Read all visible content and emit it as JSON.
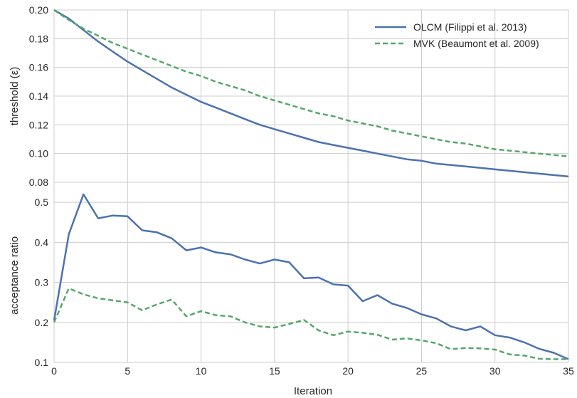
{
  "colors": {
    "olcm": "#4c72b0",
    "mvk": "#55a868",
    "grid": "#cccccc",
    "text": "#262626"
  },
  "chart_data": [
    {
      "type": "line",
      "title": "",
      "xlabel": "",
      "ylabel": "threshold (ε)",
      "xlim": [
        0,
        35
      ],
      "ylim": [
        0.08,
        0.2
      ],
      "xticks": [
        0,
        5,
        10,
        15,
        20,
        25,
        30,
        35
      ],
      "xtick_labels": [
        "0",
        "5",
        "10",
        "15",
        "20",
        "25",
        "30",
        "35"
      ],
      "yticks": [
        0.08,
        0.1,
        0.12,
        0.14,
        0.16,
        0.18,
        0.2
      ],
      "ytick_labels": [
        "0.08",
        "0.10",
        "0.12",
        "0.14",
        "0.16",
        "0.18",
        "0.20"
      ],
      "grid": true,
      "legend": "top-right",
      "series": [
        {
          "name": "OLCM (Filippi et al. 2013)",
          "style": "solid",
          "x": [
            0,
            1,
            2,
            3,
            4,
            5,
            6,
            7,
            8,
            9,
            10,
            11,
            12,
            13,
            14,
            15,
            16,
            17,
            18,
            19,
            20,
            21,
            22,
            23,
            24,
            25,
            26,
            27,
            28,
            29,
            30,
            31,
            32,
            33,
            34,
            35
          ],
          "y": [
            0.2,
            0.194,
            0.186,
            0.178,
            0.171,
            0.164,
            0.158,
            0.152,
            0.146,
            0.141,
            0.136,
            0.132,
            0.128,
            0.124,
            0.12,
            0.117,
            0.114,
            0.111,
            0.108,
            0.106,
            0.104,
            0.102,
            0.1,
            0.098,
            0.096,
            0.095,
            0.093,
            0.092,
            0.091,
            0.09,
            0.089,
            0.088,
            0.087,
            0.086,
            0.085,
            0.084
          ]
        },
        {
          "name": "MVK (Beaumont et al. 2009)",
          "style": "dashed",
          "x": [
            0,
            1,
            2,
            3,
            4,
            5,
            6,
            7,
            8,
            9,
            10,
            11,
            12,
            13,
            14,
            15,
            16,
            17,
            18,
            19,
            20,
            21,
            22,
            23,
            24,
            25,
            26,
            27,
            28,
            29,
            30,
            31,
            32,
            33,
            34,
            35
          ],
          "y": [
            0.2,
            0.193,
            0.187,
            0.182,
            0.177,
            0.173,
            0.169,
            0.165,
            0.161,
            0.157,
            0.154,
            0.15,
            0.147,
            0.144,
            0.14,
            0.137,
            0.134,
            0.131,
            0.128,
            0.126,
            0.123,
            0.121,
            0.119,
            0.116,
            0.114,
            0.112,
            0.11,
            0.108,
            0.107,
            0.105,
            0.103,
            0.102,
            0.101,
            0.1,
            0.099,
            0.098
          ]
        }
      ]
    },
    {
      "type": "line",
      "title": "",
      "xlabel": "Iteration",
      "ylabel": "acceptance ratio",
      "xlim": [
        0,
        35
      ],
      "ylim": [
        0.1,
        0.55
      ],
      "xticks": [
        0,
        5,
        10,
        15,
        20,
        25,
        30,
        35
      ],
      "xtick_labels": [
        "0",
        "5",
        "10",
        "15",
        "20",
        "25",
        "30",
        "35"
      ],
      "yticks": [
        0.1,
        0.2,
        0.3,
        0.4,
        0.5
      ],
      "ytick_labels": [
        "0.1",
        "0.2",
        "0.3",
        "0.4",
        "0.5"
      ],
      "grid": true,
      "series": [
        {
          "name": "OLCM (Filippi et al. 2013)",
          "style": "solid",
          "x": [
            0,
            1,
            2,
            3,
            4,
            5,
            6,
            7,
            8,
            9,
            10,
            11,
            12,
            13,
            14,
            15,
            16,
            17,
            18,
            19,
            20,
            21,
            22,
            23,
            24,
            25,
            26,
            27,
            28,
            29,
            30,
            31,
            32,
            33,
            34,
            35
          ],
          "y": [
            0.205,
            0.42,
            0.52,
            0.46,
            0.467,
            0.465,
            0.43,
            0.425,
            0.41,
            0.38,
            0.387,
            0.375,
            0.37,
            0.357,
            0.347,
            0.357,
            0.35,
            0.31,
            0.312,
            0.295,
            0.292,
            0.253,
            0.268,
            0.247,
            0.236,
            0.22,
            0.21,
            0.19,
            0.18,
            0.19,
            0.168,
            0.162,
            0.15,
            0.134,
            0.124,
            0.108
          ]
        },
        {
          "name": "MVK (Beaumont et al. 2009)",
          "style": "dashed",
          "x": [
            0,
            1,
            2,
            3,
            4,
            5,
            6,
            7,
            8,
            9,
            10,
            11,
            12,
            13,
            14,
            15,
            16,
            17,
            18,
            19,
            20,
            21,
            22,
            23,
            24,
            25,
            26,
            27,
            28,
            29,
            30,
            31,
            32,
            33,
            34,
            35
          ],
          "y": [
            0.2,
            0.285,
            0.27,
            0.26,
            0.255,
            0.25,
            0.23,
            0.245,
            0.257,
            0.215,
            0.228,
            0.218,
            0.215,
            0.2,
            0.19,
            0.187,
            0.196,
            0.206,
            0.18,
            0.168,
            0.177,
            0.174,
            0.169,
            0.157,
            0.16,
            0.155,
            0.148,
            0.133,
            0.136,
            0.135,
            0.132,
            0.12,
            0.117,
            0.109,
            0.108,
            0.108
          ]
        }
      ]
    }
  ]
}
